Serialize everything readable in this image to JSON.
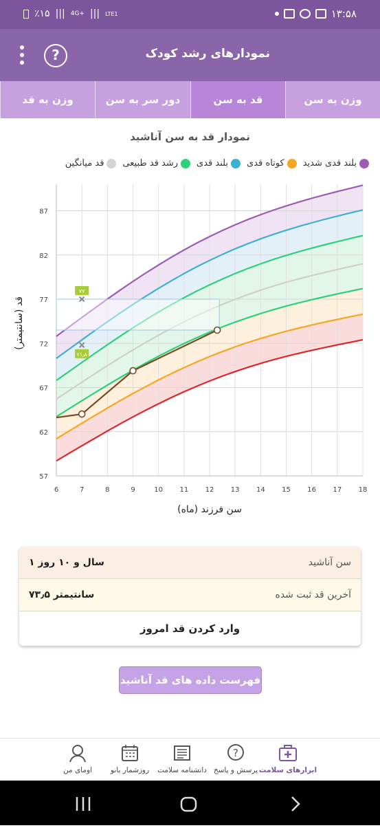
{
  "status_bar": {
    "time": "۱۳:۵۸",
    "battery": "٪۱۵",
    "network": "4G+",
    "lte": "LTE1"
  },
  "app_bar": {
    "title": "نمودارهای رشد کودک"
  },
  "tabs": [
    {
      "label": "وزن به سن"
    },
    {
      "label": "قد به سن"
    },
    {
      "label": "دور سر به سن"
    },
    {
      "label": "وزن به قد"
    }
  ],
  "chart_title": "نمودار قد به سن آناشید",
  "legend": [
    {
      "label": "بلند قدی شدید",
      "color": "#9c5cb3"
    },
    {
      "label": "کوتاه قدی",
      "color": "#f5a623"
    },
    {
      "label": "بلند قدی",
      "color": "#3eb1d1"
    },
    {
      "label": "رشد قد طبیعی",
      "color": "#2ed17b"
    },
    {
      "label": "قد میانگین",
      "color": "#d4d4d4"
    }
  ],
  "chart_data": {
    "type": "line",
    "xlabel": "سن فرزند (ماه)",
    "ylabel": "قد (سانتیمتر)",
    "xlim": [
      6,
      18
    ],
    "ylim": [
      57,
      90
    ],
    "xticks": [
      6,
      7,
      8,
      9,
      10,
      11,
      12,
      13,
      14,
      15,
      16,
      17,
      18
    ],
    "yticks": [
      57,
      62,
      67,
      72,
      77,
      82,
      87
    ],
    "series": [
      {
        "name": "بلند قدی شدید",
        "color": "#9c5cb3",
        "x": [
          6,
          18
        ],
        "y": [
          72.8,
          89.9
        ]
      },
      {
        "name": "بلند قدی",
        "color": "#3eb1d1",
        "x": [
          6,
          18
        ],
        "y": [
          70.3,
          87.1
        ]
      },
      {
        "name": "رشد قد طبیعی",
        "color": "#2ed17b",
        "x": [
          6,
          18
        ],
        "y": [
          67.8,
          84.2
        ]
      },
      {
        "name": "قد میانگین",
        "color": "#cfcfcf",
        "x": [
          6,
          18
        ],
        "y": [
          65.7,
          81.0
        ]
      },
      {
        "name": "رشد قد طبیعی",
        "color": "#2ed17b",
        "x": [
          6,
          18
        ],
        "y": [
          63.7,
          78.2
        ]
      },
      {
        "name": "کوتاه قدی",
        "color": "#f5a623",
        "x": [
          6,
          18
        ],
        "y": [
          61.2,
          75.3
        ]
      },
      {
        "name": "",
        "color": "#e0262b",
        "x": [
          6,
          18
        ],
        "y": [
          58.7,
          72.4
        ]
      }
    ],
    "child": {
      "color": "#7a4a22",
      "x": [
        6,
        7,
        9,
        12.3
      ],
      "y": [
        63.6,
        64.0,
        68.9,
        73.5
      ]
    },
    "markers": [
      {
        "x": 7,
        "y": 77,
        "label": "۷۷"
      },
      {
        "x": 7,
        "y": 71.8,
        "label": "۷۱٫۸"
      }
    ]
  },
  "info_card": {
    "age_label": "سن آناشید",
    "age_value": "۱ سال و ۱۰ روز",
    "last_height_label": "آخرین قد ثبت شده",
    "last_height_value": "۷۳٫۵ سانتیمتر",
    "enter_today": "وارد کردن قد امروز"
  },
  "list_button": "فهرست داده های قد آناشید",
  "bottom_nav": [
    {
      "label": "ابزارهای سلامت",
      "icon": "medical-kit-icon"
    },
    {
      "label": "پرسش و پاسخ",
      "icon": "question-bubble-icon"
    },
    {
      "label": "دانشنامه سلامت",
      "icon": "newspaper-icon"
    },
    {
      "label": "روزشمار بانو",
      "icon": "calendar-icon"
    },
    {
      "label": "اومای من",
      "icon": "profile-icon"
    }
  ]
}
